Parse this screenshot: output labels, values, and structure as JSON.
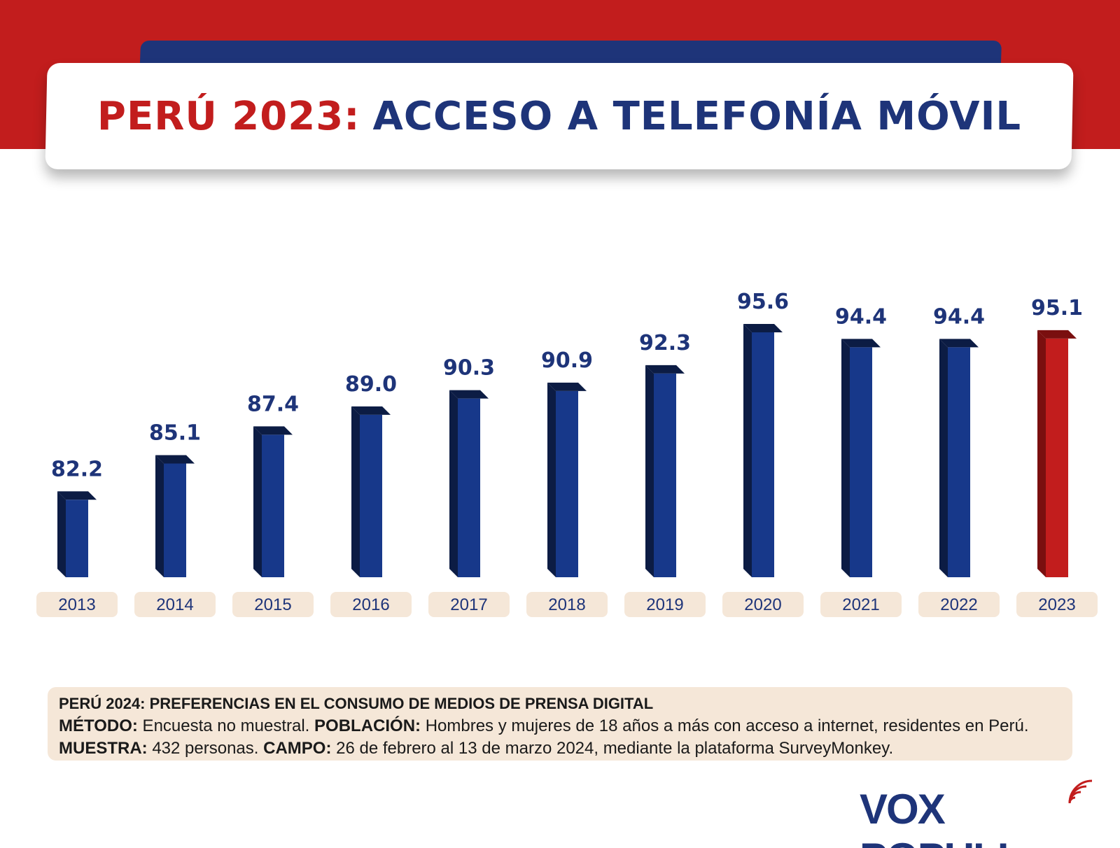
{
  "header": {
    "title_part1": "PERÚ 2023:",
    "title_part2": "ACCESO A TELEFONÍA MÓVIL"
  },
  "colors": {
    "brand_red": "#c21d1d",
    "brand_blue": "#1e3479",
    "bar_blue": "#17388a",
    "bar_blue_dark": "#0c1c44",
    "bar_highlight": "#c21d1d",
    "label_bg": "#f5e7d8"
  },
  "chart_data": {
    "type": "bar",
    "categories": [
      "2013",
      "2014",
      "2015",
      "2016",
      "2017",
      "2018",
      "2019",
      "2020",
      "2021",
      "2022",
      "2023"
    ],
    "values": [
      82.2,
      85.1,
      87.4,
      89.0,
      90.3,
      90.9,
      92.3,
      95.6,
      94.4,
      94.4,
      95.1
    ],
    "value_labels": [
      "82.2",
      "85.1",
      "87.4",
      "89.0",
      "90.3",
      "90.9",
      "92.3",
      "95.6",
      "94.4",
      "94.4",
      "95.1"
    ],
    "highlight_category": "2023",
    "title": "",
    "xlabel": "",
    "ylabel": "",
    "ylim": [
      76,
      97
    ],
    "grid": false,
    "legend": "none"
  },
  "footer_note": {
    "heading": "PERÚ 2024: PREFERENCIAS EN EL CONSUMO DE MEDIOS DE PRENSA DIGITAL",
    "method_label": "MÉTODO:",
    "method_text": " Encuesta no muestral. ",
    "population_label": "POBLACIÓN:",
    "population_text": " Hombres y mujeres de 18 años a más con acceso a internet, residentes en Perú. ",
    "sample_label": "MUESTRA:",
    "sample_text": " 432 personas. ",
    "field_label": "CAMPO:",
    "field_text": " 26 de febrero al 13 de marzo 2024, mediante la plataforma SurveyMonkey."
  },
  "logo": {
    "text": "VOX POPULI",
    "icon": "signal-waves-icon"
  }
}
